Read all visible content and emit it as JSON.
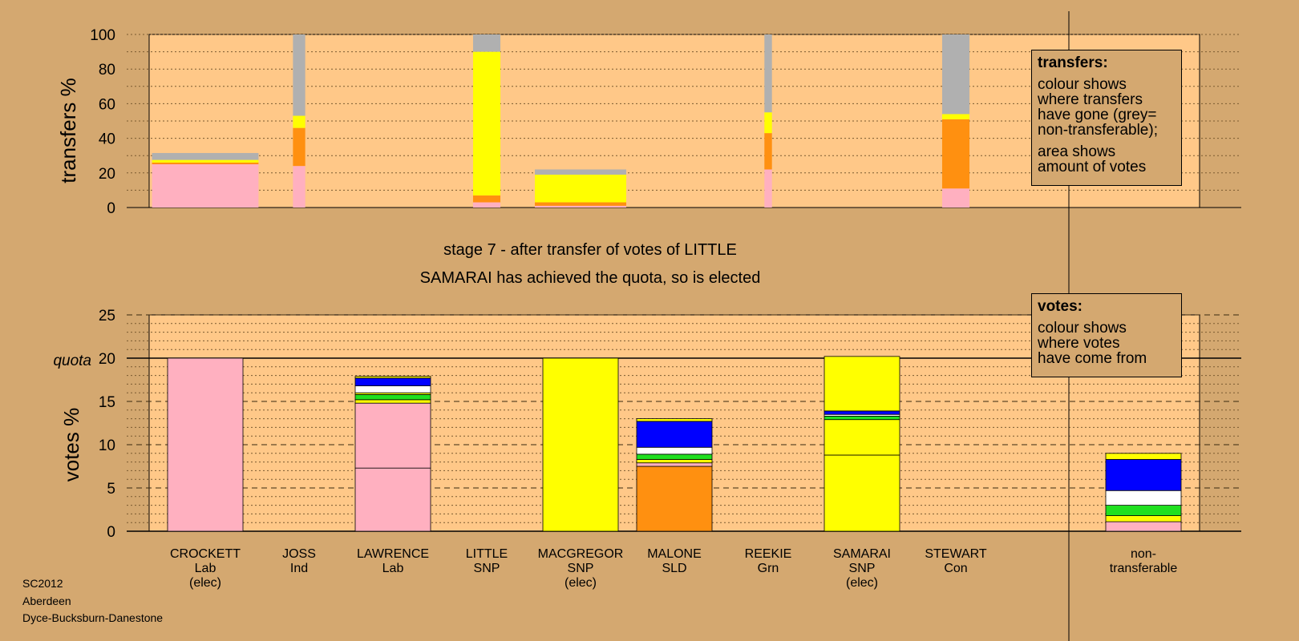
{
  "chart_data": {
    "type": "bar",
    "caption_line1": "stage 7 - after transfer of votes of LITTLE",
    "caption_line2": "SAMARAI has achieved the quota, so is elected",
    "colors": {
      "lab": "#ffb0c0",
      "snp": "#ffff00",
      "sld": "#ff9010",
      "con": "#0000ff",
      "grn": "#20e020",
      "ind": "#ffffff",
      "nontransferable": "#b0b0b0",
      "plot_bg": "#ffc888",
      "page_bg": "#d4a870"
    },
    "candidates": [
      {
        "name": "CROCKETT",
        "party": "Lab",
        "status": "(elec)"
      },
      {
        "name": "JOSS",
        "party": "Ind",
        "status": ""
      },
      {
        "name": "LAWRENCE",
        "party": "Lab",
        "status": ""
      },
      {
        "name": "LITTLE",
        "party": "SNP",
        "status": ""
      },
      {
        "name": "MACGREGOR",
        "party": "SNP",
        "status": "(elec)"
      },
      {
        "name": "MALONE",
        "party": "SLD",
        "status": ""
      },
      {
        "name": "REEKIE",
        "party": "Grn",
        "status": ""
      },
      {
        "name": "SAMARAI",
        "party": "SNP",
        "status": "(elec)"
      },
      {
        "name": "STEWART",
        "party": "Con",
        "status": ""
      },
      {
        "name": "non-",
        "party": "transferable",
        "status": ""
      }
    ],
    "transfers_chart": {
      "ylabel": "transfers %",
      "ylim": [
        0,
        100
      ],
      "yticks": [
        "0",
        "20",
        "40",
        "60",
        "80",
        "100"
      ],
      "stages": [
        {
          "width_votes": 11.3,
          "segments": [
            {
              "party": "lab",
              "value": 25
            },
            {
              "party": "sld",
              "value": 1
            },
            {
              "party": "snp",
              "value": 1.5
            },
            {
              "party": "nontransferable",
              "value": 4
            }
          ]
        },
        {
          "width_votes": 1.3,
          "segments": [
            {
              "party": "lab",
              "value": 24
            },
            {
              "party": "sld",
              "value": 22
            },
            {
              "party": "snp",
              "value": 7
            },
            {
              "party": "nontransferable",
              "value": 47
            }
          ]
        },
        {
          "width_votes": 2.9,
          "segments": [
            {
              "party": "lab",
              "value": 3
            },
            {
              "party": "sld",
              "value": 4
            },
            {
              "party": "snp",
              "value": 83
            },
            {
              "party": "nontransferable",
              "value": 10
            }
          ]
        },
        {
          "width_votes": 9.7,
          "segments": [
            {
              "party": "lab",
              "value": 1
            },
            {
              "party": "sld",
              "value": 2
            },
            {
              "party": "snp",
              "value": 16
            },
            {
              "party": "nontransferable",
              "value": 3
            }
          ]
        },
        {
          "width_votes": 0.8,
          "segments": [
            {
              "party": "lab",
              "value": 22
            },
            {
              "party": "sld",
              "value": 21
            },
            {
              "party": "snp",
              "value": 12
            },
            {
              "party": "nontransferable",
              "value": 45
            }
          ]
        },
        {
          "width_votes": 2.9,
          "segments": [
            {
              "party": "lab",
              "value": 11
            },
            {
              "party": "sld",
              "value": 40
            },
            {
              "party": "snp",
              "value": 3
            },
            {
              "party": "nontransferable",
              "value": 46
            }
          ]
        }
      ]
    },
    "votes_chart": {
      "ylabel": "votes %",
      "ylim": [
        0,
        25
      ],
      "yticks": [
        "0",
        "5",
        "10",
        "15",
        "20",
        "25"
      ],
      "quota_label": "quota",
      "quota": 20,
      "bars": [
        {
          "candidate": "CROCKETT",
          "segments": [
            {
              "party": "lab",
              "value": 20
            }
          ]
        },
        {
          "candidate": "JOSS",
          "segments": []
        },
        {
          "candidate": "LAWRENCE",
          "segments": [
            {
              "party": "lab",
              "value": 7.3
            },
            {
              "party": "lab",
              "value": 7.5
            },
            {
              "party": "snp",
              "value": 0.4
            },
            {
              "party": "grn",
              "value": 0.6
            },
            {
              "party": "snp",
              "value": 0.2
            },
            {
              "party": "ind",
              "value": 0.8
            },
            {
              "party": "con",
              "value": 0.9
            },
            {
              "party": "snp",
              "value": 0.2
            }
          ]
        },
        {
          "candidate": "LITTLE",
          "segments": []
        },
        {
          "candidate": "MACGREGOR",
          "segments": [
            {
              "party": "snp",
              "value": 20
            }
          ]
        },
        {
          "candidate": "MALONE",
          "segments": [
            {
              "party": "sld",
              "value": 7.5
            },
            {
              "party": "lab",
              "value": 0.4
            },
            {
              "party": "snp",
              "value": 0.4
            },
            {
              "party": "grn",
              "value": 0.6
            },
            {
              "party": "ind",
              "value": 0.8
            },
            {
              "party": "con",
              "value": 3
            },
            {
              "party": "snp",
              "value": 0.3
            }
          ]
        },
        {
          "candidate": "REEKIE",
          "segments": []
        },
        {
          "candidate": "SAMARAI",
          "segments": [
            {
              "party": "snp",
              "value": 8.8
            },
            {
              "party": "snp",
              "value": 4.1
            },
            {
              "party": "grn",
              "value": 0.4
            },
            {
              "party": "ind",
              "value": 0.2
            },
            {
              "party": "con",
              "value": 0.4
            },
            {
              "party": "snp",
              "value": 6.3
            }
          ]
        },
        {
          "candidate": "STEWART",
          "segments": []
        },
        {
          "candidate": "non-transferable",
          "segments": [
            {
              "party": "lab",
              "value": 1.1
            },
            {
              "party": "snp",
              "value": 0.7
            },
            {
              "party": "grn",
              "value": 1.2
            },
            {
              "party": "ind",
              "value": 1.7
            },
            {
              "party": "con",
              "value": 3.6
            },
            {
              "party": "snp",
              "value": 0.7
            }
          ]
        }
      ]
    }
  },
  "legend_transfers": {
    "title": "transfers:",
    "para1": "colour shows\nwhere transfers\nhave gone (grey=\nnon-transferable);",
    "para2": "area shows\namount of votes"
  },
  "legend_votes": {
    "title": "votes:",
    "para1": "colour shows\nwhere votes\nhave come from"
  },
  "footer": {
    "line1": "SC2012",
    "line2": "Aberdeen",
    "line3": "Dyce-Bucksburn-Danestone"
  }
}
